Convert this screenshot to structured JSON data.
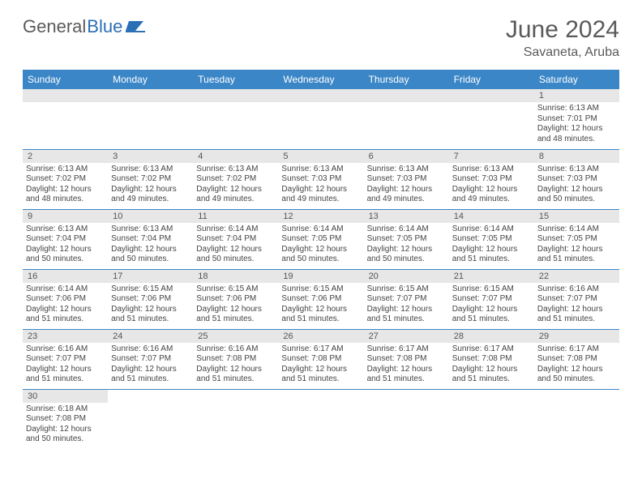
{
  "brand": {
    "word1": "General",
    "word2": "Blue"
  },
  "title": "June 2024",
  "location": "Savaneta, Aruba",
  "dayHeaders": [
    "Sunday",
    "Monday",
    "Tuesday",
    "Wednesday",
    "Thursday",
    "Friday",
    "Saturday"
  ],
  "colors": {
    "headerBg": "#3b86c7",
    "headerText": "#ffffff",
    "dayStripe": "#e7e7e7",
    "borderColor": "#3b86c7",
    "titleColor": "#5a5a5a"
  },
  "weeks": [
    [
      null,
      null,
      null,
      null,
      null,
      null,
      {
        "n": "1",
        "sr": "6:13 AM",
        "ss": "7:01 PM",
        "dl": "12 hours and 48 minutes."
      }
    ],
    [
      {
        "n": "2",
        "sr": "6:13 AM",
        "ss": "7:02 PM",
        "dl": "12 hours and 48 minutes."
      },
      {
        "n": "3",
        "sr": "6:13 AM",
        "ss": "7:02 PM",
        "dl": "12 hours and 49 minutes."
      },
      {
        "n": "4",
        "sr": "6:13 AM",
        "ss": "7:02 PM",
        "dl": "12 hours and 49 minutes."
      },
      {
        "n": "5",
        "sr": "6:13 AM",
        "ss": "7:03 PM",
        "dl": "12 hours and 49 minutes."
      },
      {
        "n": "6",
        "sr": "6:13 AM",
        "ss": "7:03 PM",
        "dl": "12 hours and 49 minutes."
      },
      {
        "n": "7",
        "sr": "6:13 AM",
        "ss": "7:03 PM",
        "dl": "12 hours and 49 minutes."
      },
      {
        "n": "8",
        "sr": "6:13 AM",
        "ss": "7:03 PM",
        "dl": "12 hours and 50 minutes."
      }
    ],
    [
      {
        "n": "9",
        "sr": "6:13 AM",
        "ss": "7:04 PM",
        "dl": "12 hours and 50 minutes."
      },
      {
        "n": "10",
        "sr": "6:13 AM",
        "ss": "7:04 PM",
        "dl": "12 hours and 50 minutes."
      },
      {
        "n": "11",
        "sr": "6:14 AM",
        "ss": "7:04 PM",
        "dl": "12 hours and 50 minutes."
      },
      {
        "n": "12",
        "sr": "6:14 AM",
        "ss": "7:05 PM",
        "dl": "12 hours and 50 minutes."
      },
      {
        "n": "13",
        "sr": "6:14 AM",
        "ss": "7:05 PM",
        "dl": "12 hours and 50 minutes."
      },
      {
        "n": "14",
        "sr": "6:14 AM",
        "ss": "7:05 PM",
        "dl": "12 hours and 51 minutes."
      },
      {
        "n": "15",
        "sr": "6:14 AM",
        "ss": "7:05 PM",
        "dl": "12 hours and 51 minutes."
      }
    ],
    [
      {
        "n": "16",
        "sr": "6:14 AM",
        "ss": "7:06 PM",
        "dl": "12 hours and 51 minutes."
      },
      {
        "n": "17",
        "sr": "6:15 AM",
        "ss": "7:06 PM",
        "dl": "12 hours and 51 minutes."
      },
      {
        "n": "18",
        "sr": "6:15 AM",
        "ss": "7:06 PM",
        "dl": "12 hours and 51 minutes."
      },
      {
        "n": "19",
        "sr": "6:15 AM",
        "ss": "7:06 PM",
        "dl": "12 hours and 51 minutes."
      },
      {
        "n": "20",
        "sr": "6:15 AM",
        "ss": "7:07 PM",
        "dl": "12 hours and 51 minutes."
      },
      {
        "n": "21",
        "sr": "6:15 AM",
        "ss": "7:07 PM",
        "dl": "12 hours and 51 minutes."
      },
      {
        "n": "22",
        "sr": "6:16 AM",
        "ss": "7:07 PM",
        "dl": "12 hours and 51 minutes."
      }
    ],
    [
      {
        "n": "23",
        "sr": "6:16 AM",
        "ss": "7:07 PM",
        "dl": "12 hours and 51 minutes."
      },
      {
        "n": "24",
        "sr": "6:16 AM",
        "ss": "7:07 PM",
        "dl": "12 hours and 51 minutes."
      },
      {
        "n": "25",
        "sr": "6:16 AM",
        "ss": "7:08 PM",
        "dl": "12 hours and 51 minutes."
      },
      {
        "n": "26",
        "sr": "6:17 AM",
        "ss": "7:08 PM",
        "dl": "12 hours and 51 minutes."
      },
      {
        "n": "27",
        "sr": "6:17 AM",
        "ss": "7:08 PM",
        "dl": "12 hours and 51 minutes."
      },
      {
        "n": "28",
        "sr": "6:17 AM",
        "ss": "7:08 PM",
        "dl": "12 hours and 51 minutes."
      },
      {
        "n": "29",
        "sr": "6:17 AM",
        "ss": "7:08 PM",
        "dl": "12 hours and 50 minutes."
      }
    ],
    [
      {
        "n": "30",
        "sr": "6:18 AM",
        "ss": "7:08 PM",
        "dl": "12 hours and 50 minutes."
      },
      null,
      null,
      null,
      null,
      null,
      null
    ]
  ],
  "labels": {
    "sunrise": "Sunrise:",
    "sunset": "Sunset:",
    "daylight": "Daylight:"
  }
}
